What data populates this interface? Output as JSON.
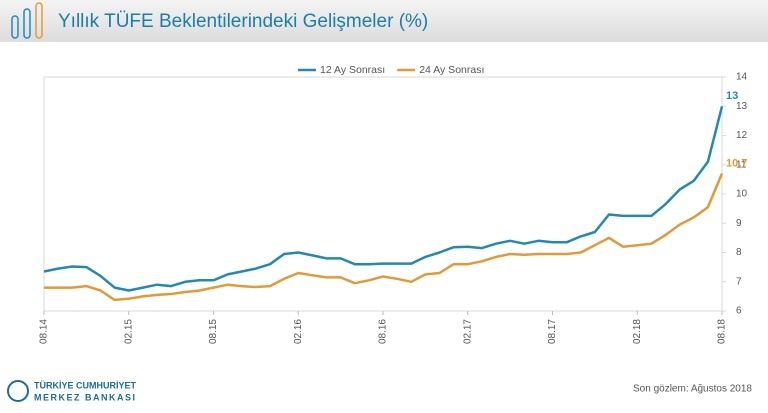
{
  "header": {
    "title": "Yıllık TÜFE Beklentilerindeki Gelişmeler (%)"
  },
  "chart_data": {
    "type": "line",
    "categories": [
      "08.14",
      null,
      null,
      null,
      null,
      null,
      "02.15",
      null,
      null,
      null,
      null,
      null,
      "08.15",
      null,
      null,
      null,
      null,
      null,
      "02.16",
      null,
      null,
      null,
      null,
      null,
      "08.16",
      null,
      null,
      null,
      null,
      null,
      "02.17",
      null,
      null,
      null,
      null,
      null,
      "08.17",
      null,
      null,
      null,
      null,
      null,
      "02.18",
      null,
      null,
      null,
      null,
      null,
      "08.18"
    ],
    "series": [
      {
        "name": "12 Ay Sonrası",
        "color": "#2389b3",
        "values": [
          7.35,
          7.45,
          7.52,
          7.5,
          7.2,
          6.8,
          6.7,
          6.8,
          6.9,
          6.85,
          7.0,
          7.05,
          7.05,
          7.25,
          7.35,
          7.45,
          7.6,
          7.95,
          8.0,
          7.9,
          7.8,
          7.8,
          7.6,
          7.6,
          7.62,
          7.62,
          7.62,
          7.85,
          8.0,
          8.18,
          8.2,
          8.15,
          8.3,
          8.4,
          8.3,
          8.4,
          8.35,
          8.35,
          8.55,
          8.7,
          9.3,
          9.25,
          9.25,
          9.25,
          9.65,
          10.15,
          10.45,
          11.1,
          13.0
        ]
      },
      {
        "name": "24 Ay Sonrası",
        "color": "#e39a36",
        "values": [
          6.8,
          6.8,
          6.8,
          6.85,
          6.7,
          6.38,
          6.42,
          6.5,
          6.55,
          6.58,
          6.65,
          6.7,
          6.8,
          6.9,
          6.85,
          6.82,
          6.85,
          7.1,
          7.3,
          7.22,
          7.15,
          7.15,
          6.95,
          7.05,
          7.18,
          7.1,
          7.0,
          7.25,
          7.3,
          7.6,
          7.6,
          7.7,
          7.85,
          7.95,
          7.92,
          7.95,
          7.95,
          7.95,
          8.0,
          8.25,
          8.5,
          8.2,
          8.25,
          8.3,
          8.6,
          8.95,
          9.2,
          9.55,
          10.7
        ],
        "value_labels": [
          null,
          null,
          null,
          null,
          null,
          null,
          null,
          null,
          null,
          null,
          null,
          null,
          null,
          null,
          null,
          null,
          null,
          null,
          null,
          null,
          null,
          null,
          null,
          null,
          null,
          null,
          null,
          null,
          null,
          null,
          null,
          null,
          null,
          null,
          null,
          null,
          null,
          null,
          null,
          null,
          null,
          null,
          null,
          null,
          null,
          null,
          null,
          null,
          "10,7"
        ]
      }
    ],
    "ylim": [
      6,
      14
    ],
    "yticks": [
      6,
      7,
      8,
      9,
      10,
      11,
      12,
      13,
      14
    ],
    "grid": false,
    "legend": "top"
  },
  "footer": {
    "bank_line1": "TÜRKİYE CUMHURİYET",
    "bank_line2": "MERKEZ BANKASI",
    "note": "Son gözlem: Ağustos 2018"
  }
}
